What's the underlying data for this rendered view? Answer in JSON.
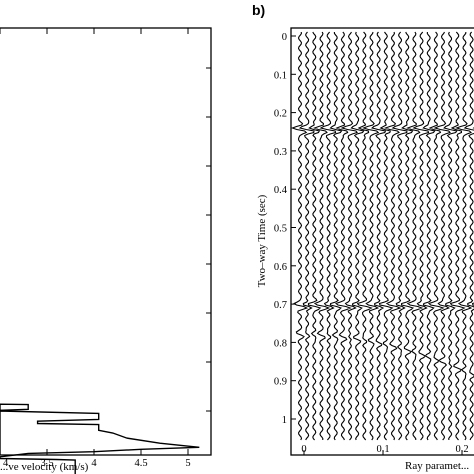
{
  "chart_data": [
    {
      "type": "line",
      "xlabel": "...ve velocity (km/s)",
      "x_ticks": [
        "...4",
        "3.5",
        "4",
        "4.5",
        "5"
      ],
      "x_tick_values": [
        3.0,
        3.5,
        4.0,
        4.5,
        5.0
      ],
      "xlim": [
        3.0,
        5.3
      ],
      "ylim": [
        0,
        1
      ],
      "series": [
        {
          "points": [
            [
              3.0,
              0.0
            ],
            [
              3.0,
              0.685
            ],
            [
              3.3,
              0.686
            ],
            [
              3.3,
              0.7
            ],
            [
              3.0,
              0.703
            ],
            [
              3.0,
              0.705
            ],
            [
              4.05,
              0.712
            ],
            [
              4.05,
              0.73
            ],
            [
              3.4,
              0.735
            ],
            [
              3.4,
              0.742
            ],
            [
              4.05,
              0.745
            ],
            [
              4.05,
              0.762
            ],
            [
              4.2,
              0.77
            ],
            [
              4.35,
              0.785
            ],
            [
              4.7,
              0.8
            ],
            [
              5.12,
              0.812
            ],
            [
              4.5,
              0.818
            ],
            [
              4.0,
              0.825
            ],
            [
              3.3,
              0.83
            ],
            [
              3.0,
              0.84
            ],
            [
              3.0,
              0.845
            ],
            [
              3.6,
              0.848
            ],
            [
              3.8,
              0.85
            ],
            [
              3.8,
              0.955
            ]
          ]
        }
      ]
    },
    {
      "type": "line",
      "panel_label": "b)",
      "ylabel": "Two–way Time (sec)",
      "xlabel": "Ray paramet...",
      "y_ticks": [
        "0",
        "0.1",
        "0.2",
        "0.3",
        "0.4",
        "0.5",
        "0.6",
        "0.7",
        "0.8",
        "0.9",
        "1"
      ],
      "y_tick_values": [
        0,
        0.1,
        0.2,
        0.3,
        0.4,
        0.5,
        0.6,
        0.7,
        0.8,
        0.9,
        1.0
      ],
      "x_ticks": [
        "0",
        "0.1",
        "0.2"
      ],
      "x_tick_values": [
        0,
        0.1,
        0.2
      ],
      "ylim": [
        0,
        1
      ],
      "xlim": [
        -0.01,
        0.205
      ],
      "trace_count": 26,
      "events": [
        {
          "time": 0.245,
          "strength": 1.0
        },
        {
          "time": 0.705,
          "strength": 0.9
        },
        {
          "time": 0.78,
          "strength": 0.4
        }
      ]
    }
  ]
}
